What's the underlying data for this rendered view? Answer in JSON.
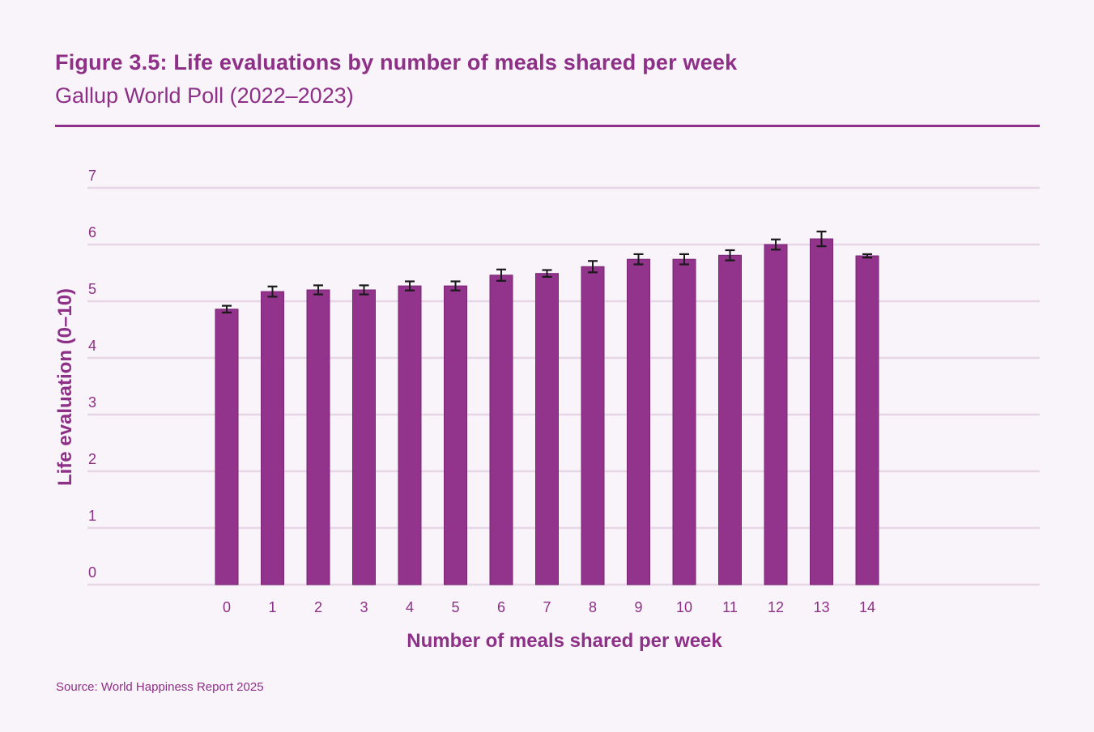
{
  "title": "Figure 3.5: Life evaluations by number of meals shared per week",
  "subtitle": "Gallup World Poll (2022–2023)",
  "source": "Source: World Happiness Report 2025",
  "colors": {
    "bar": "#92338c",
    "bar_edge": "#7a2675",
    "text": "#8e2f88",
    "grid": "#e6d6e6",
    "error_bar": "#1a1a1a",
    "background": "#f8f4f9"
  },
  "chart_data": {
    "type": "bar",
    "title": "Figure 3.5: Life evaluations by number of meals shared per week",
    "subtitle": "Gallup World Poll (2022–2023)",
    "xlabel": "Number of meals shared per week",
    "ylabel": "Life evaluation (0–10)",
    "categories": [
      "0",
      "1",
      "2",
      "3",
      "4",
      "5",
      "6",
      "7",
      "8",
      "9",
      "10",
      "11",
      "12",
      "13",
      "14"
    ],
    "values": [
      4.86,
      5.17,
      5.2,
      5.2,
      5.27,
      5.27,
      5.46,
      5.49,
      5.61,
      5.74,
      5.74,
      5.81,
      6.0,
      6.1,
      5.8
    ],
    "error_bars": [
      0.06,
      0.09,
      0.08,
      0.08,
      0.08,
      0.08,
      0.1,
      0.06,
      0.1,
      0.09,
      0.09,
      0.09,
      0.09,
      0.13,
      0.03
    ],
    "ylim": [
      0,
      7
    ],
    "yticks": [
      "0",
      "1",
      "2",
      "3",
      "4",
      "5",
      "6",
      "7"
    ],
    "grid": true,
    "legend": "none"
  }
}
